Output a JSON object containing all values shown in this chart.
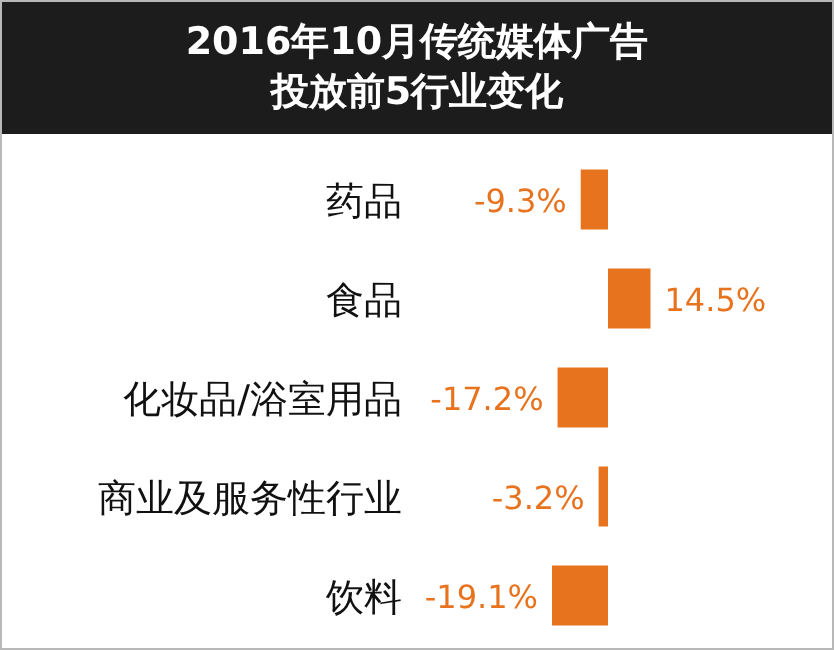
{
  "chart_data": {
    "type": "bar",
    "orientation": "horizontal",
    "title": "2016年10月传统媒体广告投放前5行业变化",
    "categories": [
      "药品",
      "食品",
      "化妆品/浴室用品",
      "商业及服务性行业",
      "饮料"
    ],
    "values": [
      -9.3,
      14.5,
      -17.2,
      -3.2,
      -19.1
    ],
    "value_labels": [
      "-9.3%",
      "14.5%",
      "-17.2%",
      "-3.2%",
      "-19.1%"
    ],
    "color": "#e8731f"
  }
}
